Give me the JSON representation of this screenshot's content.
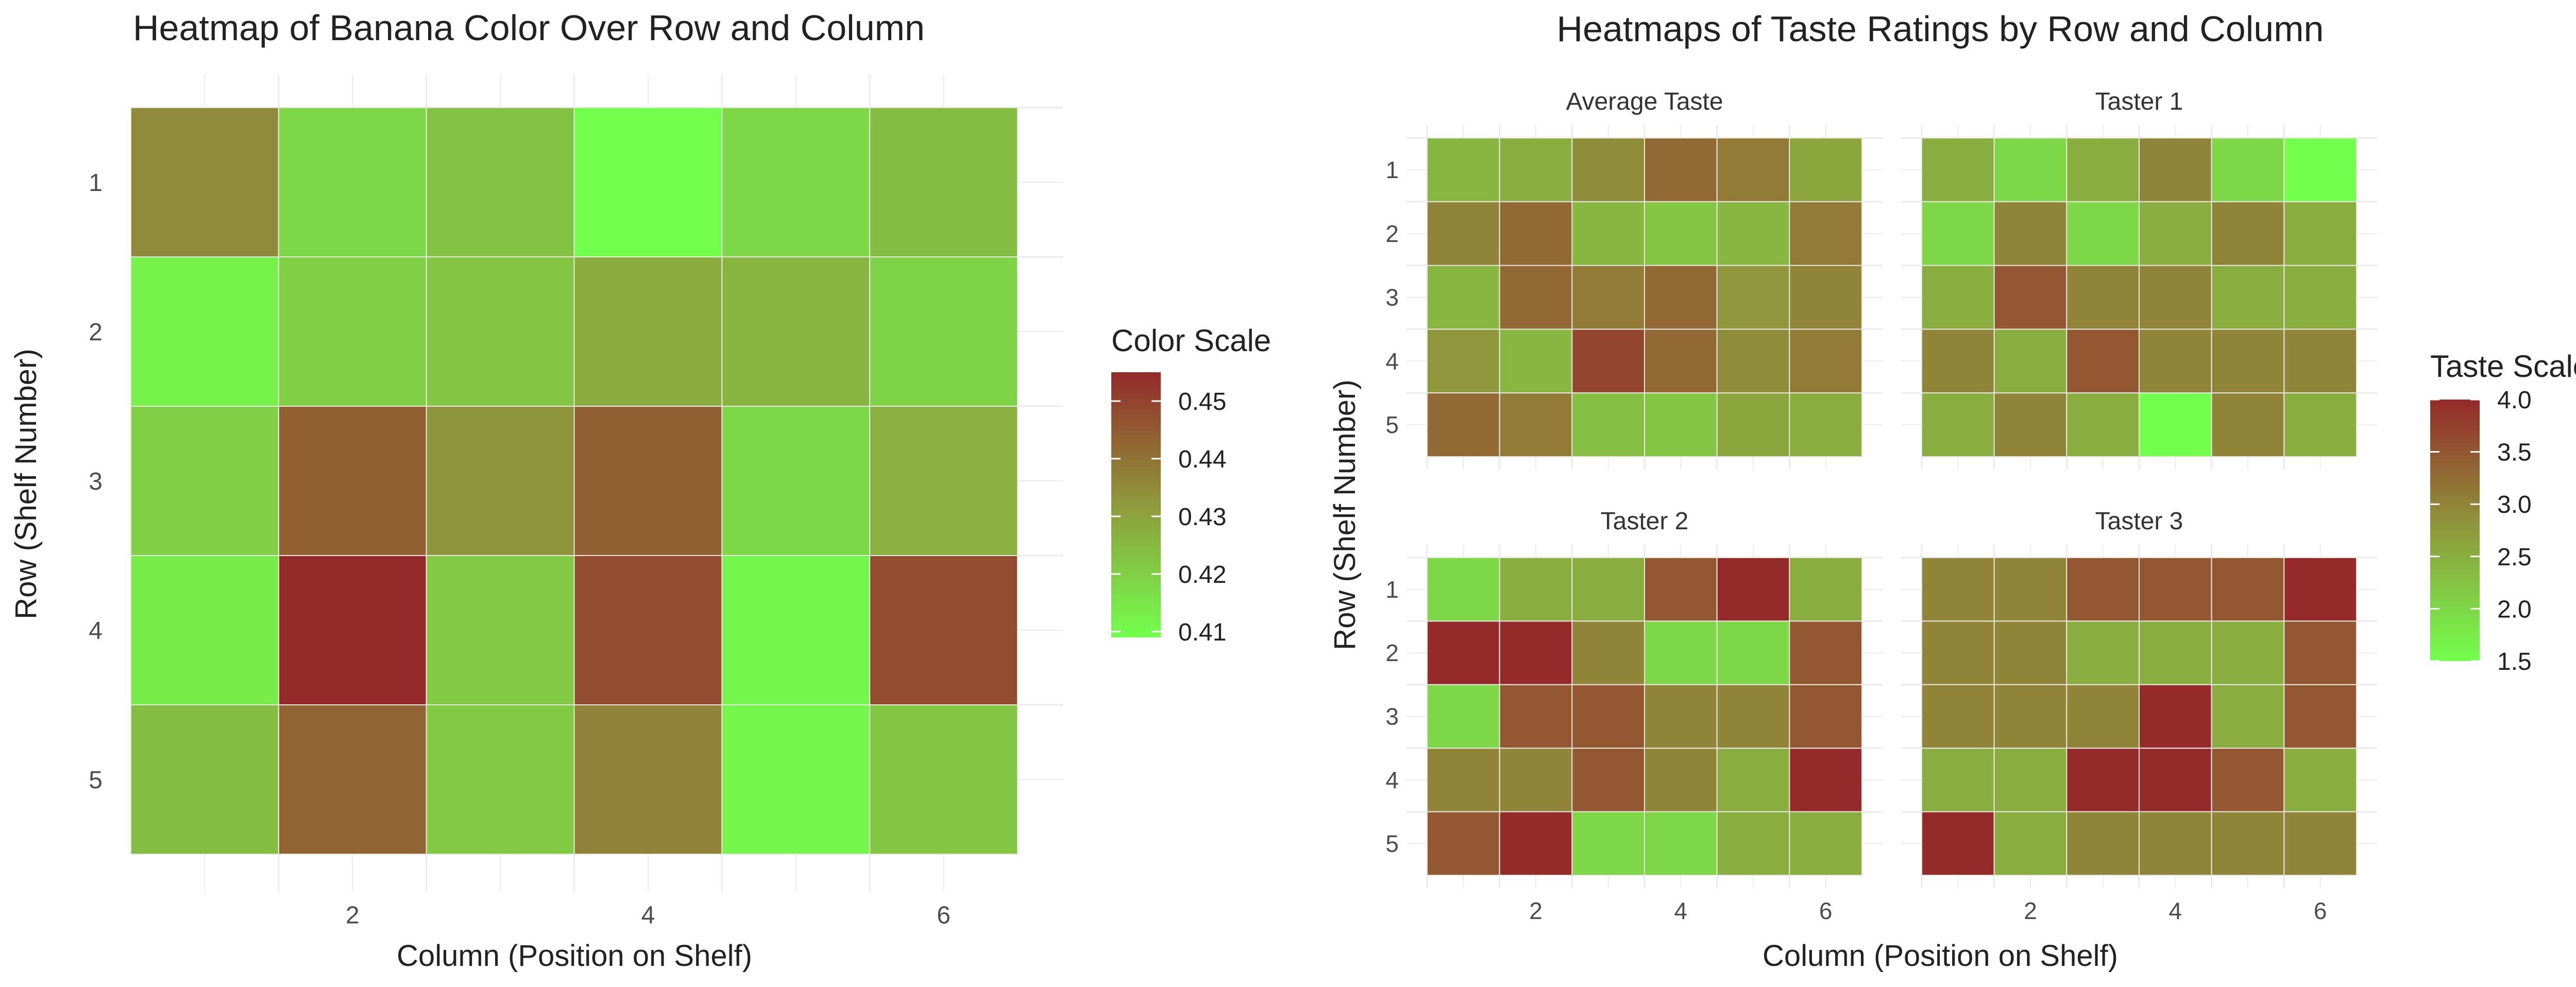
{
  "colors": {
    "low": "#73ff4d",
    "mid": "#8f9a3c",
    "high": "#952a2a",
    "grid": "#ebebeb",
    "tile_border": "#e8e8e0"
  },
  "chart_data": [
    {
      "type": "heatmap",
      "title": "Heatmap of Banana Color Over Row and Column",
      "xlabel": "Column (Position on Shelf)",
      "ylabel": "Row (Shelf Number)",
      "x": [
        1,
        2,
        3,
        4,
        5,
        6
      ],
      "y": [
        1,
        2,
        3,
        4,
        5
      ],
      "x_ticks": [
        "2",
        "4",
        "6"
      ],
      "y_ticks": [
        "1",
        "2",
        "3",
        "4",
        "5"
      ],
      "values": [
        [
          0.435,
          0.418,
          0.423,
          0.409,
          0.418,
          0.424
        ],
        [
          0.412,
          0.42,
          0.422,
          0.428,
          0.426,
          0.419
        ],
        [
          0.42,
          0.444,
          0.433,
          0.444,
          0.418,
          0.427
        ],
        [
          0.413,
          0.455,
          0.421,
          0.448,
          0.411,
          0.448
        ],
        [
          0.424,
          0.443,
          0.421,
          0.437,
          0.411,
          0.422
        ]
      ],
      "legend": {
        "title": "Color Scale",
        "ticks": [
          "0.41",
          "0.42",
          "0.43",
          "0.44",
          "0.45"
        ],
        "tick_values": [
          0.41,
          0.42,
          0.43,
          0.44,
          0.45
        ],
        "range": [
          0.409,
          0.455
        ],
        "placement": "right"
      }
    },
    {
      "type": "heatmap",
      "title": "Heatmaps of Taste Ratings by Row and Column",
      "xlabel": "Column (Position on Shelf)",
      "ylabel": "Row (Shelf Number)",
      "x": [
        1,
        2,
        3,
        4,
        5,
        6
      ],
      "y": [
        1,
        2,
        3,
        4,
        5
      ],
      "x_ticks": [
        "2",
        "4",
        "6"
      ],
      "y_ticks": [
        "1",
        "2",
        "3",
        "4",
        "5"
      ],
      "panels": [
        {
          "name": "Average Taste",
          "values": [
            [
              2.4,
              2.5,
              2.9,
              3.3,
              3.1,
              2.6
            ],
            [
              3.0,
              3.3,
              2.4,
              2.2,
              2.4,
              3.1
            ],
            [
              2.4,
              3.3,
              3.1,
              3.3,
              2.8,
              3.0
            ],
            [
              2.8,
              2.4,
              3.7,
              3.3,
              2.9,
              3.1
            ],
            [
              3.3,
              3.1,
              2.3,
              2.2,
              2.6,
              2.5
            ]
          ]
        },
        {
          "name": "Taster 1",
          "values": [
            [
              2.5,
              2.0,
              2.5,
              3.0,
              2.0,
              1.5
            ],
            [
              2.0,
              3.0,
              2.0,
              2.5,
              3.0,
              2.5
            ],
            [
              2.5,
              3.5,
              3.0,
              3.0,
              2.5,
              2.5
            ],
            [
              3.0,
              2.5,
              3.5,
              3.0,
              3.0,
              3.0
            ],
            [
              2.5,
              3.0,
              2.5,
              1.5,
              3.0,
              2.5
            ]
          ]
        },
        {
          "name": "Taster 2",
          "values": [
            [
              2.0,
              2.5,
              2.5,
              3.5,
              4.0,
              2.5
            ],
            [
              4.0,
              4.0,
              3.0,
              2.0,
              2.0,
              3.5
            ],
            [
              2.0,
              3.5,
              3.5,
              3.0,
              3.0,
              3.5
            ],
            [
              3.0,
              3.0,
              3.5,
              3.0,
              2.5,
              4.0
            ],
            [
              3.5,
              4.0,
              2.0,
              2.0,
              2.5,
              2.5
            ]
          ]
        },
        {
          "name": "Taster 3",
          "values": [
            [
              3.0,
              3.0,
              3.5,
              3.5,
              3.5,
              4.0
            ],
            [
              3.0,
              3.0,
              2.5,
              2.5,
              2.5,
              3.5
            ],
            [
              3.0,
              3.0,
              3.0,
              4.0,
              2.5,
              3.5
            ],
            [
              2.5,
              2.5,
              4.0,
              4.0,
              3.5,
              2.5
            ],
            [
              4.0,
              2.5,
              3.0,
              3.0,
              3.0,
              3.0
            ]
          ]
        }
      ],
      "legend": {
        "title": "Taste Scale",
        "ticks": [
          "1.5",
          "2.0",
          "2.5",
          "3.0",
          "3.5",
          "4.0"
        ],
        "tick_values": [
          1.5,
          2.0,
          2.5,
          3.0,
          3.5,
          4.0
        ],
        "range": [
          1.5,
          4.0
        ],
        "placement": "right"
      }
    }
  ]
}
